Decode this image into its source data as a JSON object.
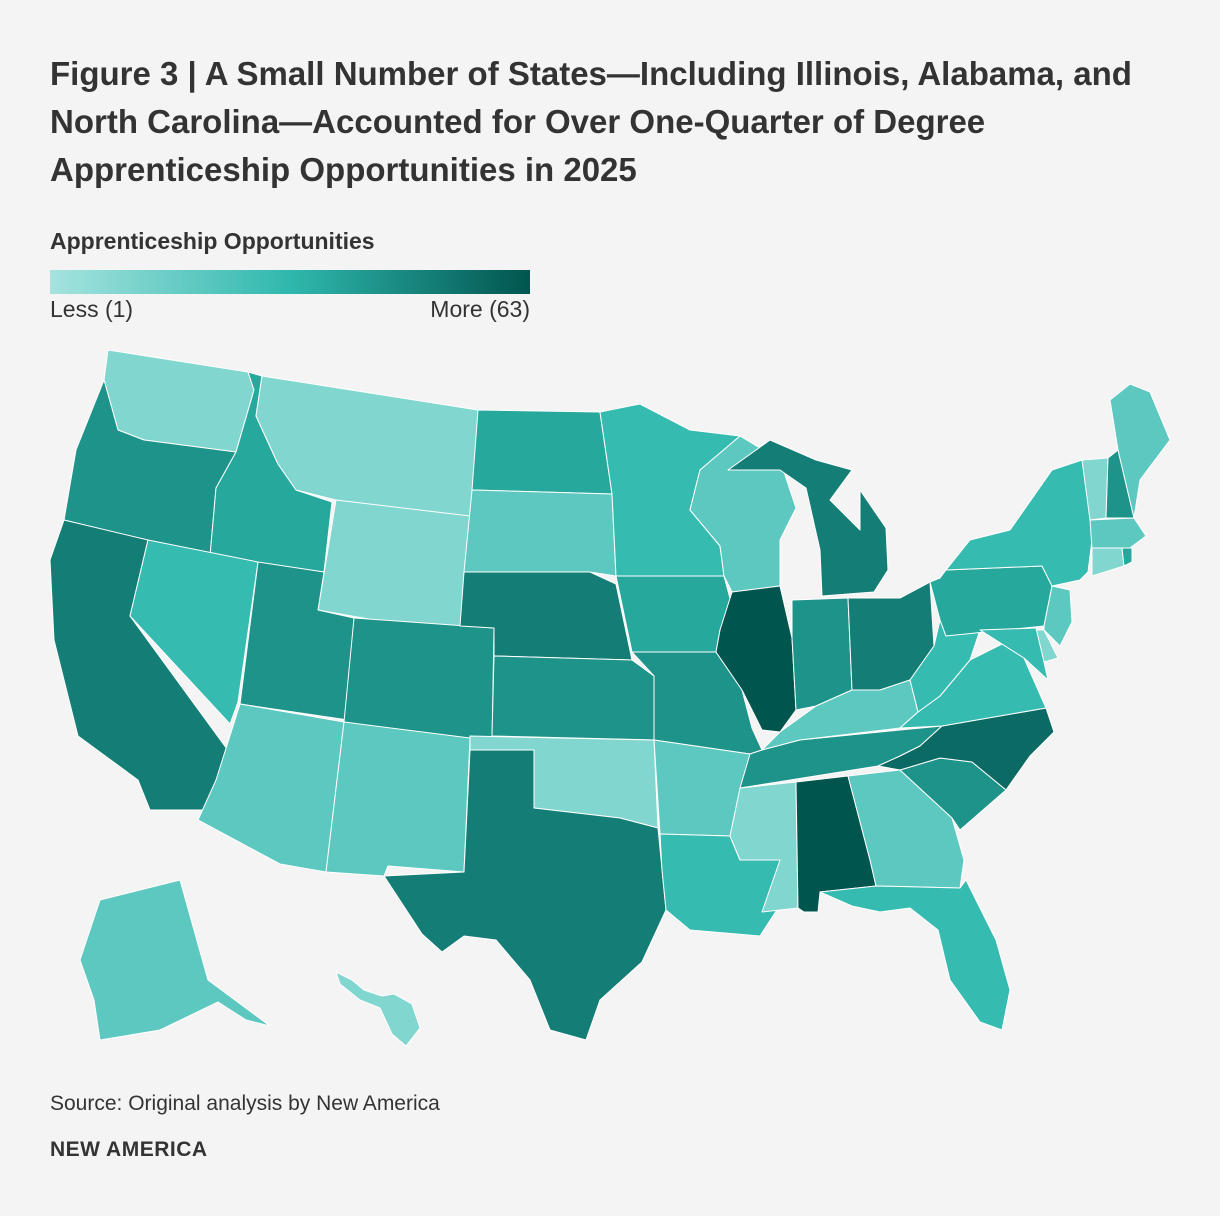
{
  "title": "Figure 3 | A Small Number of States—Including Illinois, Alabama, and North Carolina—Accounted for Over One-Quarter of Degree Apprenticeship Opportunities in 2025",
  "legend": {
    "title": "Apprenticeship Opportunities",
    "min_label": "Less (1)",
    "max_label": "More (63)",
    "min_value": 1,
    "max_value": 63,
    "color_low": "#a6e3df",
    "color_mid": "#2fb8ad",
    "color_high": "#01554f"
  },
  "states": [
    {
      "code": "WA",
      "level": 1
    },
    {
      "code": "OR",
      "level": 5
    },
    {
      "code": "CA",
      "level": 6
    },
    {
      "code": "ID",
      "level": 4
    },
    {
      "code": "NV",
      "level": 3
    },
    {
      "code": "MT",
      "level": 1
    },
    {
      "code": "WY",
      "level": 1
    },
    {
      "code": "UT",
      "level": 5
    },
    {
      "code": "AZ",
      "level": 2
    },
    {
      "code": "CO",
      "level": 5
    },
    {
      "code": "NM",
      "level": 2
    },
    {
      "code": "ND",
      "level": 4
    },
    {
      "code": "SD",
      "level": 2
    },
    {
      "code": "NE",
      "level": 6
    },
    {
      "code": "KS",
      "level": 5
    },
    {
      "code": "OK",
      "level": 1
    },
    {
      "code": "TX",
      "level": 6
    },
    {
      "code": "MN",
      "level": 3
    },
    {
      "code": "IA",
      "level": 4
    },
    {
      "code": "MO",
      "level": 5
    },
    {
      "code": "AR",
      "level": 2
    },
    {
      "code": "LA",
      "level": 3
    },
    {
      "code": "WI",
      "level": 2
    },
    {
      "code": "IL",
      "level": 8
    },
    {
      "code": "MI",
      "level": 6
    },
    {
      "code": "IN",
      "level": 5
    },
    {
      "code": "OH",
      "level": 6
    },
    {
      "code": "KY",
      "level": 2
    },
    {
      "code": "TN",
      "level": 5
    },
    {
      "code": "MS",
      "level": 1
    },
    {
      "code": "AL",
      "level": 8
    },
    {
      "code": "GA",
      "level": 2
    },
    {
      "code": "FL",
      "level": 3
    },
    {
      "code": "SC",
      "level": 5
    },
    {
      "code": "NC",
      "level": 7
    },
    {
      "code": "VA",
      "level": 3
    },
    {
      "code": "WV",
      "level": 3
    },
    {
      "code": "PA",
      "level": 4
    },
    {
      "code": "NY",
      "level": 3
    },
    {
      "code": "VT",
      "level": 1
    },
    {
      "code": "NH",
      "level": 5
    },
    {
      "code": "ME",
      "level": 2
    },
    {
      "code": "MA",
      "level": 2
    },
    {
      "code": "CT",
      "level": 1
    },
    {
      "code": "RI",
      "level": 4
    },
    {
      "code": "NJ",
      "level": 2
    },
    {
      "code": "DE",
      "level": 1
    },
    {
      "code": "MD",
      "level": 3
    },
    {
      "code": "AK",
      "level": 2
    },
    {
      "code": "HI",
      "level": 1
    }
  ],
  "source": "Source: Original analysis by New America",
  "brand": "NEW AMERICA"
}
